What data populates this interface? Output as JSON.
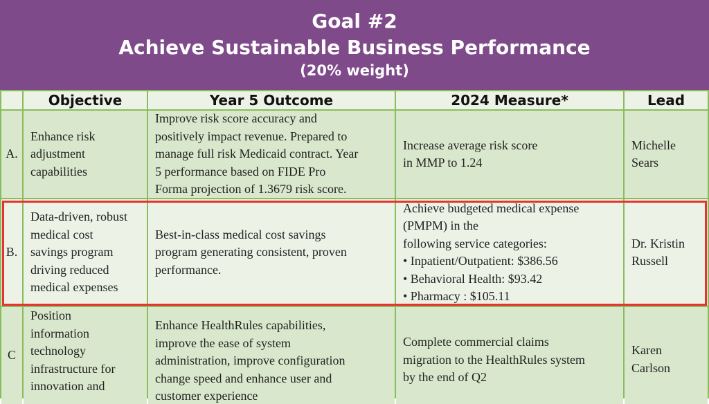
{
  "header": {
    "goal": "Goal #2",
    "title": "Achieve Sustainable Business Performance",
    "weight": "(20% weight)"
  },
  "columns": [
    "Objective",
    "Year 5 Outcome",
    "2024 Measure*",
    "Lead"
  ],
  "rows": [
    {
      "letter": "A.",
      "objective": [
        "Enhance risk",
        "adjustment",
        "capabilities"
      ],
      "outcome": [
        "Improve risk score accuracy and",
        "positively impact revenue. Prepared to",
        "manage full risk Medicaid contract. Year",
        "5 performance based on FIDE Pro",
        "Forma projection of 1.3679 risk score."
      ],
      "measure": [
        "Increase average risk score",
        "in MMP to 1.24"
      ],
      "lead": [
        "Michelle",
        "Sears"
      ]
    },
    {
      "letter": "B.",
      "objective": [
        "Data-driven, robust",
        "medical cost",
        "savings program",
        "driving reduced",
        "medical expenses"
      ],
      "outcome": [
        "Best-in-class medical cost savings",
        "program generating consistent, proven",
        "performance."
      ],
      "measure": [
        "Achieve budgeted medical expense",
        "(PMPM) in the",
        "following service categories:",
        "• Inpatient/Outpatient: $386.56",
        "• Behavioral Health: $93.42",
        "• Pharmacy : $105.11"
      ],
      "lead": [
        "Dr. Kristin",
        "Russell"
      ]
    },
    {
      "letter": "C",
      "objective": [
        "Position",
        "information",
        "technology",
        "infrastructure for",
        "innovation and"
      ],
      "outcome": [
        "Enhance HealthRules capabilities,",
        "improve the ease of  system",
        "administration, improve configuration",
        "change speed and enhance user and",
        "customer experience"
      ],
      "measure": [
        "Complete commercial claims",
        "migration to the HealthRules system",
        "by the end of Q2"
      ],
      "lead": [
        "Karen",
        "Carlson"
      ]
    }
  ]
}
